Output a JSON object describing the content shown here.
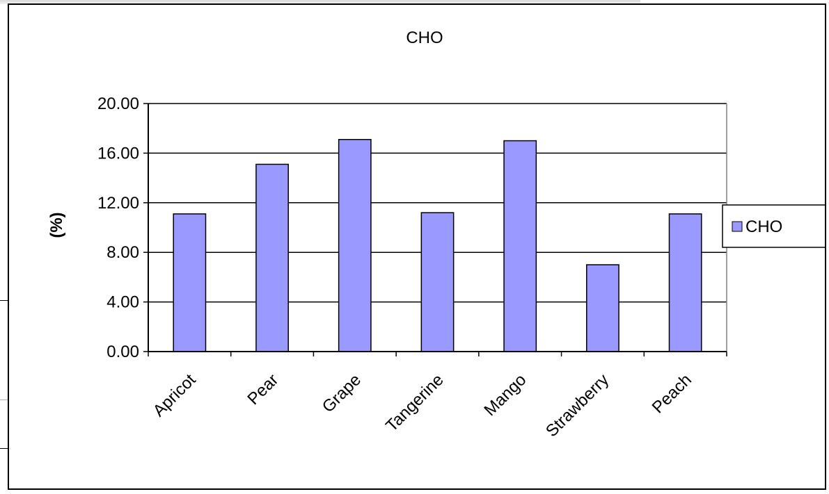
{
  "chart_data": {
    "type": "bar",
    "title": "CHO",
    "xlabel": "",
    "ylabel": "(%)",
    "categories": [
      "Apricot",
      "Pear",
      "Grape",
      "Tangerine",
      "Mango",
      "Strawberry",
      "Peach"
    ],
    "series": [
      {
        "name": "CHO",
        "values": [
          11.1,
          15.1,
          17.1,
          11.2,
          17.0,
          7.0,
          11.1
        ],
        "color": "#9999ff"
      }
    ],
    "ylim": [
      0,
      20
    ],
    "yticks": [
      "0.00",
      "4.00",
      "8.00",
      "12.00",
      "16.00",
      "20.00"
    ],
    "grid": true,
    "legend": "right",
    "plot_background": "#ffffff"
  }
}
